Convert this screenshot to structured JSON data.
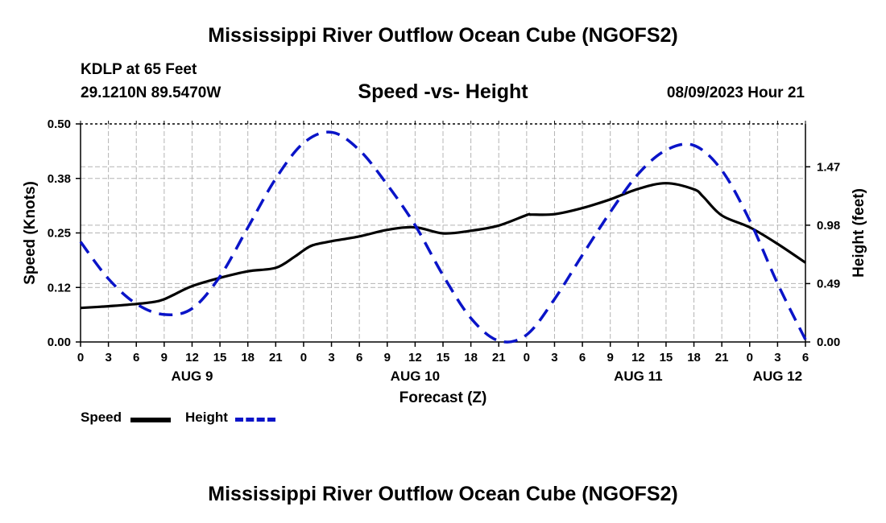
{
  "header": {
    "title": "Mississippi River Outflow Ocean Cube (NGOFS2)",
    "station": "KDLP at 65 Feet",
    "coordinates": "29.1210N  89.5470W",
    "subtitle": "Speed -vs- Height",
    "datetime": "08/09/2023 Hour 21"
  },
  "footer": {
    "title": "Mississippi River Outflow Ocean Cube (NGOFS2)"
  },
  "legend": {
    "speed_label": "Speed",
    "height_label": "Height"
  },
  "colors": {
    "speed": "#000000",
    "height": "#0a14c8",
    "grid": "#b4b4b4"
  },
  "chart_data": {
    "type": "line",
    "title": "Speed -vs- Height",
    "xlabel": "Forecast (Z)",
    "ylabel": "Speed (Knots)",
    "y2label": "Height (feet)",
    "xlim": [
      0,
      78
    ],
    "ylim": [
      0,
      0.5
    ],
    "y2lim": [
      0,
      1.83
    ],
    "x_ticks": [
      0,
      3,
      6,
      9,
      12,
      15,
      18,
      21,
      24,
      27,
      30,
      33,
      36,
      39,
      42,
      45,
      48,
      51,
      54,
      57,
      60,
      63,
      66,
      69,
      72,
      75,
      78
    ],
    "x_tick_labels": [
      "0",
      "3",
      "6",
      "9",
      "12",
      "15",
      "18",
      "21",
      "0",
      "3",
      "6",
      "9",
      "12",
      "15",
      "18",
      "21",
      "0",
      "3",
      "6",
      "9",
      "12",
      "15",
      "18",
      "21",
      "0",
      "3",
      "6"
    ],
    "y_ticks": [
      0,
      0.125,
      0.25,
      0.375,
      0.5
    ],
    "y_tick_labels": [
      "0.00",
      "0.12",
      "0.25",
      "0.38",
      "0.50"
    ],
    "y2_ticks": [
      0,
      0.49,
      0.98,
      1.47
    ],
    "y2_tick_labels": [
      "0.00",
      "0.49",
      "0.98",
      "1.47"
    ],
    "day_labels": [
      {
        "x": 12,
        "label": "AUG 9"
      },
      {
        "x": 36,
        "label": "AUG 10"
      },
      {
        "x": 60,
        "label": "AUG 11"
      },
      {
        "x": 75,
        "label": "AUG 12"
      }
    ],
    "series": [
      {
        "name": "Speed",
        "axis": "left",
        "style": "solid",
        "x": [
          0,
          3,
          6,
          8,
          9,
          10,
          12,
          15,
          18,
          21,
          23,
          24,
          25,
          27,
          30,
          33,
          36,
          39,
          42,
          45,
          48,
          48.5,
          51,
          54,
          57,
          60,
          63,
          66,
          67,
          69,
          72,
          75,
          78
        ],
        "values": [
          0.078,
          0.082,
          0.087,
          0.092,
          0.098,
          0.108,
          0.128,
          0.147,
          0.162,
          0.17,
          0.195,
          0.21,
          0.222,
          0.231,
          0.242,
          0.257,
          0.263,
          0.249,
          0.255,
          0.267,
          0.291,
          0.292,
          0.293,
          0.307,
          0.327,
          0.351,
          0.364,
          0.35,
          0.333,
          0.29,
          0.263,
          0.225,
          0.182
        ]
      },
      {
        "name": "Height",
        "axis": "right",
        "style": "dashed",
        "x": [
          0,
          3,
          6,
          9,
          12,
          15,
          18,
          21,
          24,
          27,
          30,
          33,
          36,
          39,
          42,
          45,
          48,
          51,
          54,
          57,
          60,
          63,
          66,
          69,
          72,
          75,
          78
        ],
        "values": [
          0.84,
          0.53,
          0.32,
          0.23,
          0.28,
          0.55,
          0.96,
          1.37,
          1.67,
          1.76,
          1.61,
          1.32,
          0.98,
          0.56,
          0.2,
          0.01,
          0.06,
          0.36,
          0.73,
          1.09,
          1.41,
          1.61,
          1.65,
          1.44,
          1.02,
          0.49,
          0.02
        ]
      }
    ]
  }
}
